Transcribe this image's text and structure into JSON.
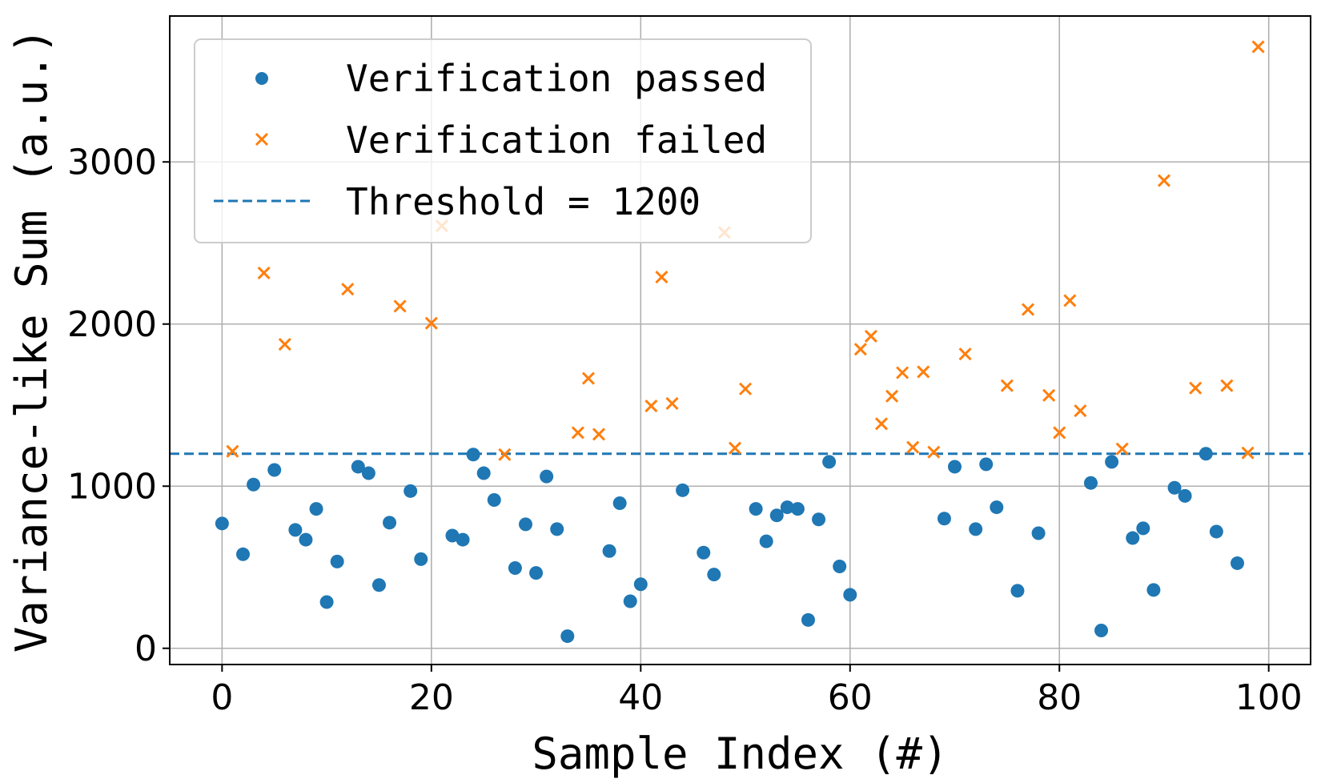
{
  "chart_data": {
    "type": "scatter",
    "xlabel": "Sample Index (#)",
    "ylabel": "Variance-like Sum (a.u.)",
    "xlim": [
      -5,
      104
    ],
    "ylim": [
      -100,
      3900
    ],
    "xticks": [
      0,
      20,
      40,
      60,
      80,
      100
    ],
    "yticks": [
      0,
      1000,
      2000,
      3000
    ],
    "grid": true,
    "legend_position": "top-left",
    "threshold": {
      "name": "Threshold = 1200",
      "value": 1200,
      "color": "#1f77b4",
      "style": "dashed"
    },
    "series": [
      {
        "name": "Verification passed",
        "marker": "circle",
        "color": "#1f77b4",
        "points": [
          [
            0,
            770
          ],
          [
            2,
            580
          ],
          [
            3,
            1010
          ],
          [
            5,
            1100
          ],
          [
            7,
            730
          ],
          [
            8,
            670
          ],
          [
            9,
            860
          ],
          [
            10,
            285
          ],
          [
            11,
            535
          ],
          [
            13,
            1120
          ],
          [
            14,
            1080
          ],
          [
            15,
            390
          ],
          [
            16,
            775
          ],
          [
            18,
            970
          ],
          [
            19,
            550
          ],
          [
            22,
            695
          ],
          [
            23,
            670
          ],
          [
            24,
            1195
          ],
          [
            25,
            1080
          ],
          [
            26,
            915
          ],
          [
            28,
            495
          ],
          [
            29,
            765
          ],
          [
            30,
            465
          ],
          [
            31,
            1060
          ],
          [
            32,
            735
          ],
          [
            33,
            75
          ],
          [
            37,
            600
          ],
          [
            38,
            895
          ],
          [
            39,
            290
          ],
          [
            40,
            395
          ],
          [
            44,
            975
          ],
          [
            46,
            590
          ],
          [
            47,
            455
          ],
          [
            51,
            860
          ],
          [
            52,
            660
          ],
          [
            53,
            820
          ],
          [
            54,
            870
          ],
          [
            55,
            860
          ],
          [
            56,
            175
          ],
          [
            57,
            795
          ],
          [
            58,
            1150
          ],
          [
            59,
            505
          ],
          [
            60,
            330
          ],
          [
            69,
            800
          ],
          [
            70,
            1120
          ],
          [
            72,
            735
          ],
          [
            73,
            1135
          ],
          [
            74,
            870
          ],
          [
            76,
            355
          ],
          [
            78,
            710
          ],
          [
            83,
            1020
          ],
          [
            84,
            110
          ],
          [
            85,
            1150
          ],
          [
            87,
            680
          ],
          [
            88,
            740
          ],
          [
            89,
            360
          ],
          [
            91,
            990
          ],
          [
            92,
            940
          ],
          [
            94,
            1200
          ],
          [
            95,
            720
          ],
          [
            97,
            525
          ]
        ]
      },
      {
        "name": "Verification failed",
        "marker": "x",
        "color": "#ff7f0e",
        "points": [
          [
            1,
            1215
          ],
          [
            4,
            2315
          ],
          [
            6,
            1875
          ],
          [
            12,
            2215
          ],
          [
            17,
            2110
          ],
          [
            20,
            2005
          ],
          [
            21,
            2605
          ],
          [
            27,
            1195
          ],
          [
            34,
            1330
          ],
          [
            35,
            1665
          ],
          [
            36,
            1320
          ],
          [
            41,
            1495
          ],
          [
            42,
            2290
          ],
          [
            43,
            1510
          ],
          [
            48,
            2565
          ],
          [
            49,
            1235
          ],
          [
            50,
            1600
          ],
          [
            61,
            1845
          ],
          [
            62,
            1925
          ],
          [
            63,
            1385
          ],
          [
            64,
            1555
          ],
          [
            65,
            1700
          ],
          [
            66,
            1240
          ],
          [
            67,
            1705
          ],
          [
            68,
            1210
          ],
          [
            71,
            1815
          ],
          [
            75,
            1620
          ],
          [
            77,
            2090
          ],
          [
            79,
            1560
          ],
          [
            80,
            1330
          ],
          [
            81,
            2145
          ],
          [
            82,
            1465
          ],
          [
            86,
            1230
          ],
          [
            90,
            2885
          ],
          [
            93,
            1605
          ],
          [
            96,
            1620
          ],
          [
            98,
            1205
          ],
          [
            99,
            3710
          ]
        ]
      }
    ]
  }
}
